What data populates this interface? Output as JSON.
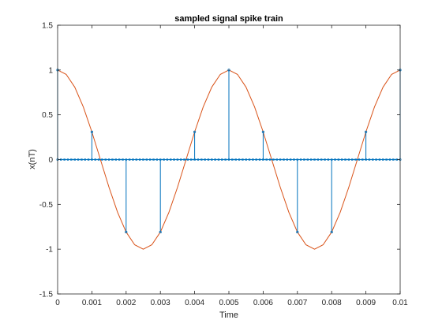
{
  "chart_data": {
    "type": "line",
    "title": "sampled signal spike train",
    "xlabel": "Time",
    "ylabel": "x(nT)",
    "xlim": [
      0,
      0.01
    ],
    "ylim": [
      -1.5,
      1.5
    ],
    "x_ticks": [
      "0",
      "0.001",
      "0.002",
      "0.003",
      "0.004",
      "0.005",
      "0.006",
      "0.007",
      "0.008",
      "0.009",
      "0.01"
    ],
    "y_ticks": [
      "-1.5",
      "-1",
      "-0.5",
      "0",
      "0.5",
      "1",
      "1.5"
    ],
    "grid": false,
    "legend": "none",
    "series": [
      {
        "kind": "stem",
        "color": "#0072BD",
        "x": [
          0,
          0.001,
          0.002,
          0.003,
          0.004,
          0.005,
          0.006,
          0.007,
          0.008,
          0.009,
          0.01
        ],
        "y": [
          1,
          0.309,
          -0.809,
          -0.809,
          0.309,
          1,
          0.309,
          -0.809,
          -0.809,
          0.309,
          1
        ]
      },
      {
        "kind": "line",
        "color": "#D95319",
        "function": "cos(2*pi*200*t)",
        "x": [
          0,
          0.00025,
          0.0005,
          0.00075,
          0.001,
          0.00125,
          0.0015,
          0.00175,
          0.002,
          0.00225,
          0.0025,
          0.00275,
          0.003,
          0.00325,
          0.0035,
          0.00375,
          0.004,
          0.00425,
          0.0045,
          0.00475,
          0.005,
          0.00525,
          0.0055,
          0.00575,
          0.006,
          0.00625,
          0.0065,
          0.00675,
          0.007,
          0.00725,
          0.0075,
          0.00775,
          0.008,
          0.00825,
          0.0085,
          0.00875,
          0.009,
          0.00925,
          0.0095,
          0.00975,
          0.01
        ],
        "y": [
          1,
          0.951,
          0.809,
          0.588,
          0.309,
          0,
          -0.309,
          -0.588,
          -0.809,
          -0.951,
          -1,
          -0.951,
          -0.809,
          -0.588,
          -0.309,
          0,
          0.309,
          0.588,
          0.809,
          0.951,
          1,
          0.951,
          0.809,
          0.588,
          0.309,
          0,
          -0.309,
          -0.588,
          -0.809,
          -0.951,
          -1,
          -0.951,
          -0.809,
          -0.588,
          -0.309,
          0,
          0.309,
          0.588,
          0.809,
          0.951,
          1
        ]
      }
    ],
    "zero_markers": {
      "color": "#0072BD",
      "x_step": 0.0001,
      "y": 0
    }
  }
}
